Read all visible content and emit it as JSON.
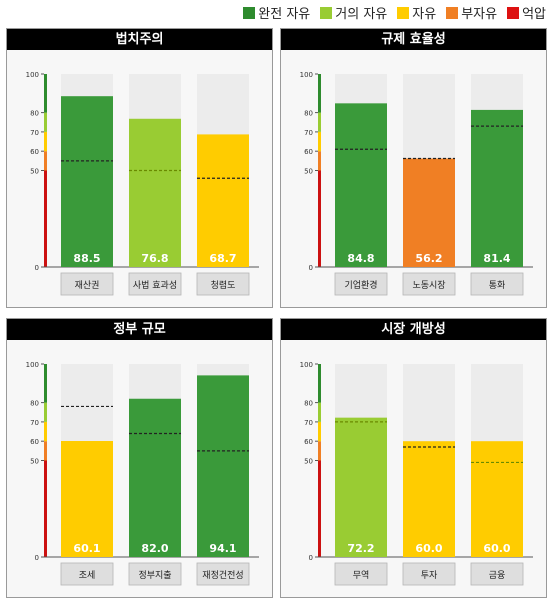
{
  "legend": [
    {
      "label": "완전 자유",
      "color": "#2e8b2e"
    },
    {
      "label": "거의 자유",
      "color": "#99cc33"
    },
    {
      "label": "자유",
      "color": "#ffcc00"
    },
    {
      "label": "부자유",
      "color": "#f07f24"
    },
    {
      "label": "억압",
      "color": "#dd1111"
    }
  ],
  "chart_data": [
    {
      "type": "bar",
      "title": "법치주의",
      "categories": [
        "재산권",
        "사법 효과성",
        "청렴도"
      ],
      "values": [
        88.5,
        76.8,
        68.7
      ],
      "value_labels": [
        "88.5",
        "76.8",
        "68.7"
      ],
      "reference": [
        55,
        50,
        46
      ],
      "bar_colors": [
        "#3a9a3a",
        "#99cc33",
        "#ffcc00"
      ],
      "ylim": [
        0,
        100
      ],
      "yticks": [
        0,
        50,
        60,
        70,
        80,
        100
      ]
    },
    {
      "type": "bar",
      "title": "규제 효율성",
      "categories": [
        "기업환경",
        "노동시장",
        "통화"
      ],
      "values": [
        84.8,
        56.2,
        81.4
      ],
      "value_labels": [
        "84.8",
        "56.2",
        "81.4"
      ],
      "reference": [
        61,
        56.2,
        73
      ],
      "bar_colors": [
        "#3a9a3a",
        "#f07f24",
        "#3a9a3a"
      ],
      "ylim": [
        0,
        100
      ],
      "yticks": [
        0,
        50,
        60,
        70,
        80,
        100
      ]
    },
    {
      "type": "bar",
      "title": "정부 규모",
      "categories": [
        "조세",
        "정부지출",
        "재정건전성"
      ],
      "values": [
        60.1,
        82.0,
        94.1
      ],
      "value_labels": [
        "60.1",
        "82.0",
        "94.1"
      ],
      "reference": [
        78,
        64,
        55
      ],
      "bar_colors": [
        "#ffcc00",
        "#3a9a3a",
        "#3a9a3a"
      ],
      "ylim": [
        0,
        100
      ],
      "yticks": [
        0,
        50,
        60,
        70,
        80,
        100
      ]
    },
    {
      "type": "bar",
      "title": "시장 개방성",
      "categories": [
        "무역",
        "투자",
        "금융"
      ],
      "values": [
        72.2,
        60.0,
        60.0
      ],
      "value_labels": [
        "72.2",
        "60.0",
        "60.0"
      ],
      "reference": [
        70,
        57,
        49
      ],
      "bar_colors": [
        "#99cc33",
        "#ffcc00",
        "#ffcc00"
      ],
      "ylim": [
        0,
        100
      ],
      "yticks": [
        0,
        50,
        60,
        70,
        80,
        100
      ]
    }
  ]
}
